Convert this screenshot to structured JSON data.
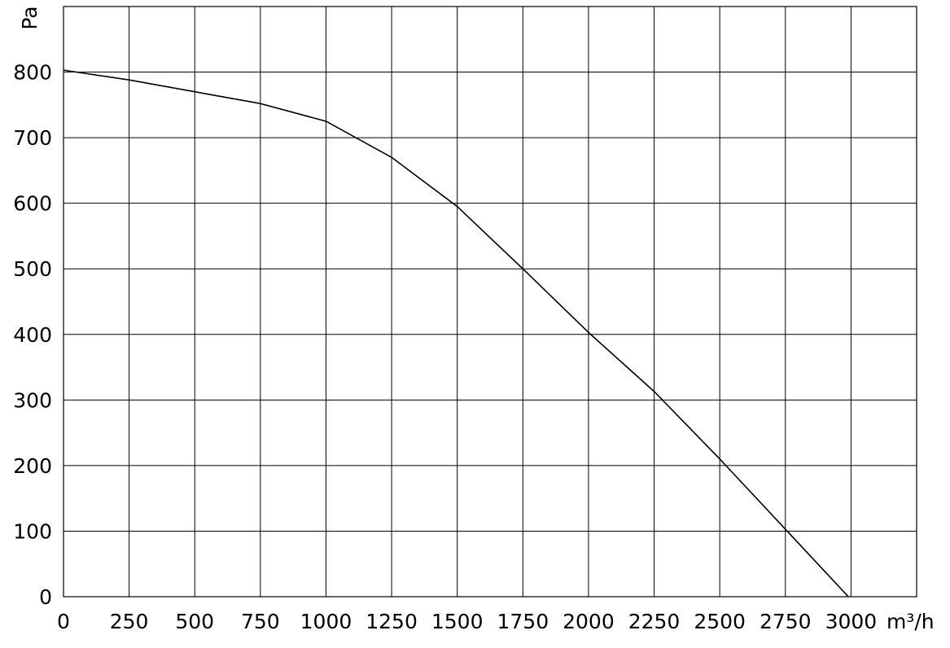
{
  "chart_data": {
    "type": "line",
    "x_label": "m³/h",
    "y_label": "Pa",
    "x": [
      0,
      250,
      500,
      750,
      1000,
      1250,
      1500,
      1750,
      2000,
      2250,
      2500,
      2750,
      2990
    ],
    "series": [
      {
        "color": "#000000",
        "values": [
          803,
          788,
          770,
          752,
          725,
          670,
          595,
          500,
          403,
          313,
          210,
          103,
          0
        ]
      }
    ],
    "xlim": [
      0,
      3250
    ],
    "xticks": [
      0,
      250,
      500,
      750,
      1000,
      1250,
      1500,
      1750,
      2000,
      2250,
      2500,
      2750,
      3000
    ],
    "ylim": [
      0,
      900
    ],
    "yticks": [
      0,
      100,
      200,
      300,
      400,
      500,
      600,
      700,
      800
    ],
    "grid": true
  }
}
